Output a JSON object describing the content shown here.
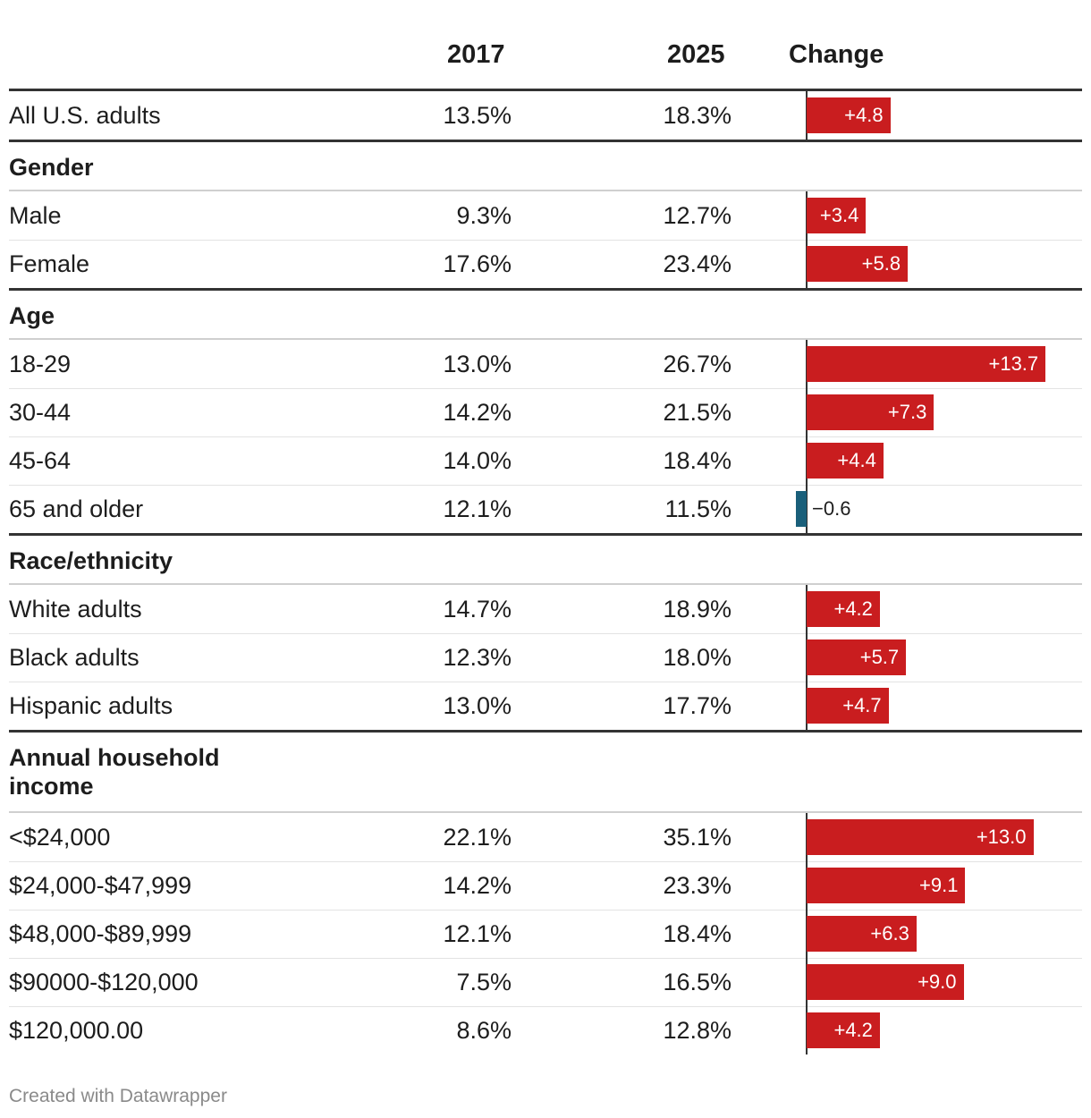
{
  "header": {
    "col1": "2017",
    "col2": "2025",
    "col3": "Change"
  },
  "colors": {
    "positive": "#c91d1f",
    "negative": "#1a5f7a"
  },
  "chart_data": {
    "type": "table",
    "columns": [
      "",
      "2017",
      "2025",
      "Change"
    ],
    "groups": [
      {
        "title": "",
        "rows": [
          {
            "label": "All U.S. adults",
            "v2017": "13.5%",
            "v2025": "18.3%",
            "change": 4.8,
            "change_label": "+4.8"
          }
        ]
      },
      {
        "title": "Gender",
        "rows": [
          {
            "label": "Male",
            "v2017": "9.3%",
            "v2025": "12.7%",
            "change": 3.4,
            "change_label": "+3.4"
          },
          {
            "label": "Female",
            "v2017": "17.6%",
            "v2025": "23.4%",
            "change": 5.8,
            "change_label": "+5.8"
          }
        ]
      },
      {
        "title": "Age",
        "rows": [
          {
            "label": "18-29",
            "v2017": "13.0%",
            "v2025": "26.7%",
            "change": 13.7,
            "change_label": "+13.7"
          },
          {
            "label": "30-44",
            "v2017": "14.2%",
            "v2025": "21.5%",
            "change": 7.3,
            "change_label": "+7.3"
          },
          {
            "label": "45-64",
            "v2017": "14.0%",
            "v2025": "18.4%",
            "change": 4.4,
            "change_label": "+4.4"
          },
          {
            "label": "65 and older",
            "v2017": "12.1%",
            "v2025": "11.5%",
            "change": -0.6,
            "change_label": "−0.6"
          }
        ]
      },
      {
        "title": "Race/ethnicity",
        "rows": [
          {
            "label": "White adults",
            "v2017": "14.7%",
            "v2025": "18.9%",
            "change": 4.2,
            "change_label": "+4.2"
          },
          {
            "label": "Black adults",
            "v2017": "12.3%",
            "v2025": "18.0%",
            "change": 5.7,
            "change_label": "+5.7"
          },
          {
            "label": "Hispanic adults",
            "v2017": "13.0%",
            "v2025": "17.7%",
            "change": 4.7,
            "change_label": "+4.7"
          }
        ]
      },
      {
        "title": "Annual household income",
        "rows": [
          {
            "label": "<$24,000",
            "v2017": "22.1%",
            "v2025": "35.1%",
            "change": 13.0,
            "change_label": "+13.0"
          },
          {
            "label": "$24,000-$47,999",
            "v2017": "14.2%",
            "v2025": "23.3%",
            "change": 9.1,
            "change_label": "+9.1"
          },
          {
            "label": "$48,000-$89,999",
            "v2017": "12.1%",
            "v2025": "18.4%",
            "change": 6.3,
            "change_label": "+6.3"
          },
          {
            "label": "$90000-$120,000",
            "v2017": "7.5%",
            "v2025": "16.5%",
            "change": 9.0,
            "change_label": "+9.0"
          },
          {
            "label": "$120,000.00",
            "v2017": "8.6%",
            "v2025": "12.8%",
            "change": 4.2,
            "change_label": "+4.2"
          }
        ]
      }
    ]
  },
  "footer": {
    "credit": "Created with Datawrapper"
  }
}
